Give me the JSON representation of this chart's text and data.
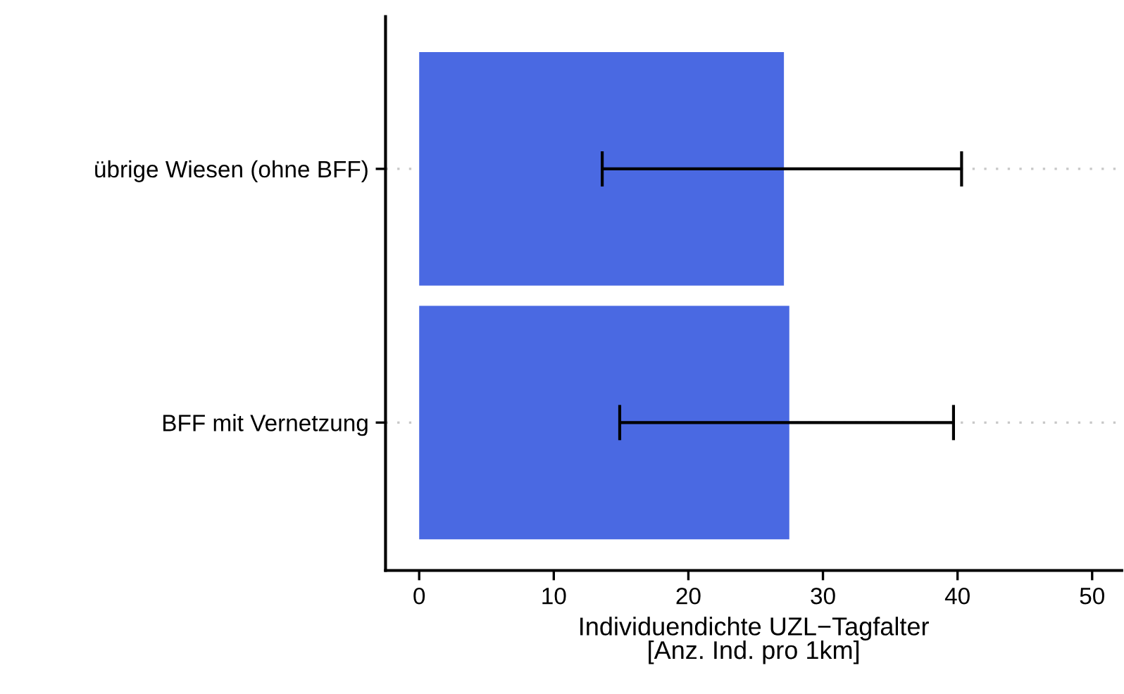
{
  "chart_data": {
    "type": "bar",
    "orientation": "horizontal",
    "xlabel": "Individuendichte UZL−Tagfalter\n[Anz. Ind. pro 1km]",
    "categories": [
      "übrige Wiesen (ohne BFF)",
      "BFF mit Vernetzung"
    ],
    "values": [
      27.1,
      27.5
    ],
    "errors": [
      [
        13.6,
        40.3
      ],
      [
        14.9,
        39.7
      ]
    ],
    "color": "#4a69e2",
    "xlim": [
      -2.5,
      52.2
    ],
    "xticks": [
      0,
      10,
      20,
      30,
      40,
      50
    ],
    "grid": "y",
    "legend": false
  }
}
